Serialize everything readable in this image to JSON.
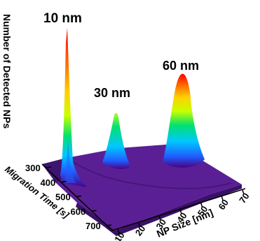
{
  "chart_data": {
    "type": "surface",
    "zlabel": "Number of Detected NPs",
    "xlabel": "NP Size [nm]",
    "ylabel": "Migration Time [s]",
    "x_ticks": [
      "10",
      "20",
      "30",
      "40",
      "50",
      "60",
      "70"
    ],
    "y_ticks": [
      "300",
      "400",
      "500",
      "600",
      "700"
    ],
    "xlim": [
      10,
      70
    ],
    "ylim": [
      300,
      700
    ],
    "peaks": [
      {
        "label": "10 nm",
        "np_size": 11,
        "migration_time": 330,
        "relative_height": 1.0
      },
      {
        "label": "30 nm",
        "np_size": 30,
        "migration_time": 390,
        "relative_height": 0.4
      },
      {
        "label": "60 nm",
        "np_size": 58,
        "migration_time": 470,
        "relative_height": 0.68
      }
    ],
    "colormap": [
      "#4b0082",
      "#3d2bb0",
      "#1f5fff",
      "#00c8ff",
      "#00e070",
      "#c8ff00",
      "#ffd000",
      "#ff6a00",
      "#ff0000"
    ]
  }
}
